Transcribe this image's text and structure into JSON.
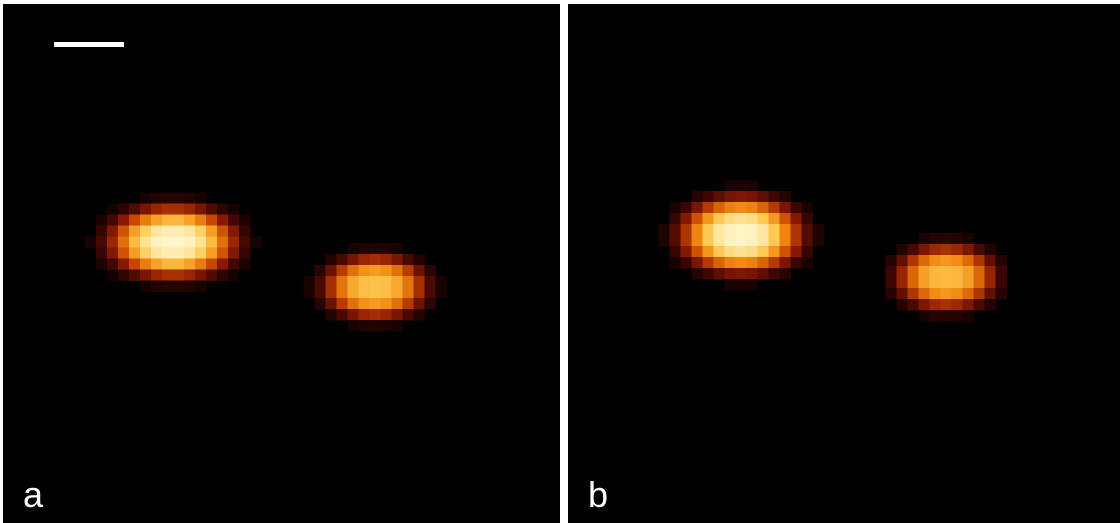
{
  "panels": [
    {
      "id": "a",
      "label": "a",
      "has_scale_bar": true
    },
    {
      "id": "b",
      "label": "b",
      "has_scale_bar": false
    }
  ],
  "colors": {
    "background": "#000000",
    "separator": "#ffffff",
    "label": "#ffffff",
    "colormap": [
      "#000000",
      "#3a0500",
      "#8a1a00",
      "#c84a00",
      "#f08a10",
      "#ffc850",
      "#fff5c8"
    ]
  }
}
